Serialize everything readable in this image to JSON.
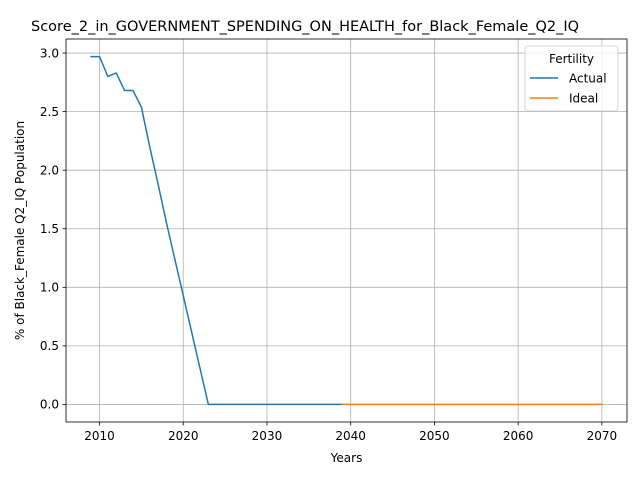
{
  "chart_data": {
    "type": "line",
    "title": "Score_2_in_GOVERNMENT_SPENDING_ON_HEALTH_for_Black_Female_Q2_IQ",
    "xlabel": "Years",
    "ylabel": "% of Black_Female Q2_IQ Population",
    "xlim": [
      2006,
      2073
    ],
    "ylim": [
      -0.15,
      3.12
    ],
    "x_ticks": [
      2010,
      2020,
      2030,
      2040,
      2050,
      2060,
      2070
    ],
    "y_ticks": [
      0.0,
      0.5,
      1.0,
      1.5,
      2.0,
      2.5,
      3.0
    ],
    "x_tick_labels": [
      "2010",
      "2020",
      "2030",
      "2040",
      "2050",
      "2060",
      "2070"
    ],
    "y_tick_labels": [
      "0.0",
      "0.5",
      "1.0",
      "1.5",
      "2.0",
      "2.5",
      "3.0"
    ],
    "grid": true,
    "legend": {
      "title": "Fertility",
      "placement": "top-right"
    },
    "series": [
      {
        "name": "Actual",
        "color": "#1f77b4",
        "x": [
          2009,
          2010,
          2011,
          2012,
          2013,
          2014,
          2015,
          2016,
          2017,
          2018,
          2019,
          2020,
          2021,
          2022,
          2023,
          2024,
          2025,
          2026,
          2027,
          2028,
          2029,
          2030,
          2031,
          2032,
          2033,
          2034,
          2035,
          2036,
          2037,
          2038,
          2039
        ],
        "y": [
          2.97,
          2.97,
          2.8,
          2.83,
          2.68,
          2.68,
          2.54,
          2.2,
          1.88,
          1.55,
          1.24,
          0.93,
          0.62,
          0.31,
          0.0,
          0.0,
          0.0,
          0.0,
          0.0,
          0.0,
          0.0,
          0.0,
          0.0,
          0.0,
          0.0,
          0.0,
          0.0,
          0.0,
          0.0,
          0.0,
          0.0
        ]
      },
      {
        "name": "Ideal",
        "color": "#ff7f0e",
        "x": [
          2039,
          2040,
          2045,
          2050,
          2055,
          2060,
          2065,
          2070
        ],
        "y": [
          0.0,
          0.0,
          0.0,
          0.0,
          0.0,
          0.0,
          0.0,
          0.0
        ]
      }
    ]
  }
}
